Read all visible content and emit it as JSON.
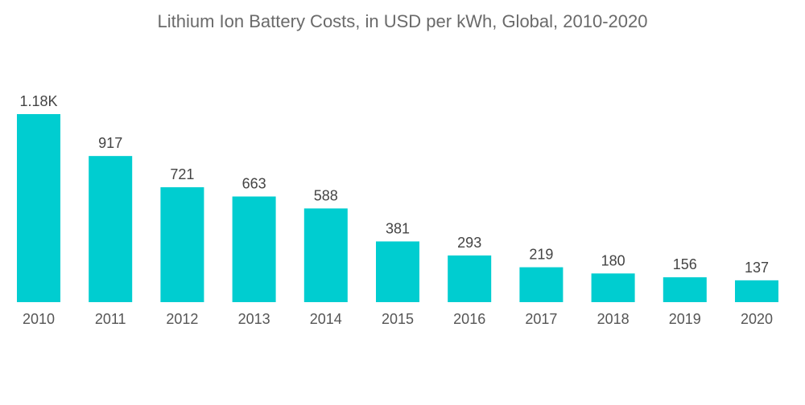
{
  "chart_data": {
    "type": "bar",
    "title": "Lithium Ion Battery Costs, in USD per kWh, Global, 2010-2020",
    "xlabel": "",
    "ylabel": "",
    "categories": [
      "2010",
      "2011",
      "2012",
      "2013",
      "2014",
      "2015",
      "2016",
      "2017",
      "2018",
      "2019",
      "2020"
    ],
    "values": [
      1180,
      917,
      721,
      663,
      588,
      381,
      293,
      219,
      180,
      156,
      137
    ],
    "data_labels": [
      "1.18K",
      "917",
      "721",
      "663",
      "588",
      "381",
      "293",
      "219",
      "180",
      "156",
      "137"
    ],
    "ylim": [
      0,
      1180
    ],
    "grid": false,
    "legend": "none",
    "bar_color": "#00CDD0"
  }
}
